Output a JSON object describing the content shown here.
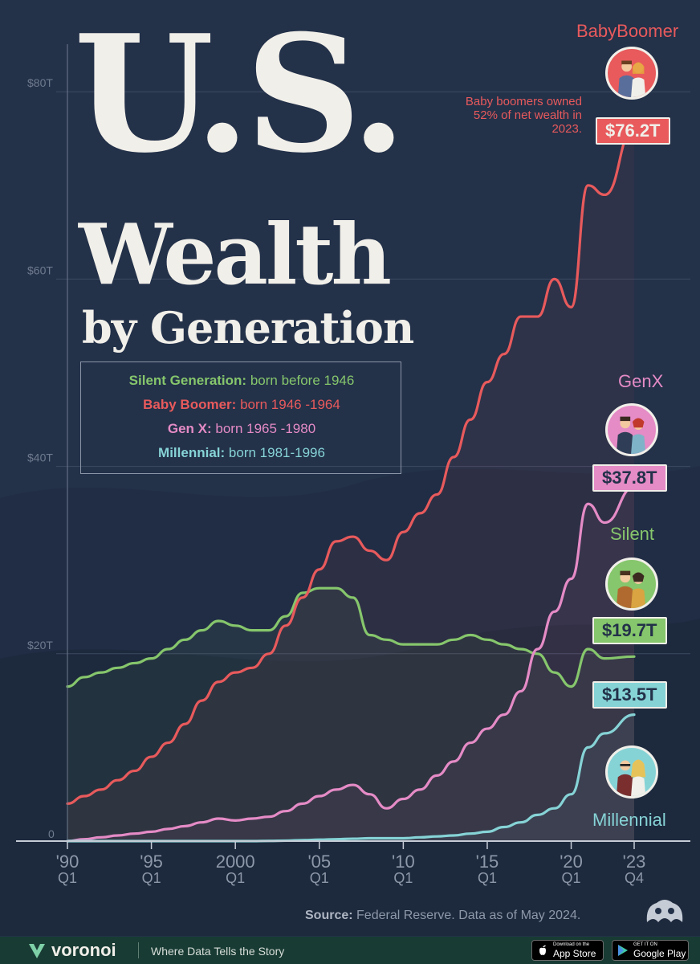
{
  "title": {
    "line1": "U.S.",
    "line2": "Wealth",
    "line3": "by Generation"
  },
  "legend": [
    {
      "name": "Silent Generation:",
      "desc": "born before 1946",
      "color": "#86c66c"
    },
    {
      "name": "Baby Boomer:",
      "desc": "born 1946 -1964",
      "color": "#e85a5c"
    },
    {
      "name": "Gen X:",
      "desc": "born 1965 -1980",
      "color": "#e58bc6"
    },
    {
      "name": "Millennial:",
      "desc": "born 1981-1996",
      "color": "#86d3d6"
    }
  ],
  "generations": {
    "boomer": {
      "label": "BabyBoomer",
      "value": "$76.2T",
      "color": "#e85a5c",
      "note": "Baby boomers owned 52% of net wealth in 2023."
    },
    "genx": {
      "label": "GenX",
      "value": "$37.8T",
      "color": "#e58bc6"
    },
    "silent": {
      "label": "Silent",
      "value": "$19.7T",
      "color": "#86c66c"
    },
    "millennial": {
      "label": "Millennial",
      "value": "$13.5T",
      "color": "#86d3d6"
    }
  },
  "source": {
    "label": "Source:",
    "text": "Federal Reserve. Data as of May 2024."
  },
  "footer": {
    "brand": "voronoi",
    "tagline": "Where Data Tells the Story",
    "app_store_small": "Download on the",
    "app_store_big": "App Store",
    "play_small": "GET IT ON",
    "play_big": "Google Play"
  },
  "chart_data": {
    "type": "line",
    "x": [
      1990,
      1991,
      1992,
      1993,
      1994,
      1995,
      1996,
      1997,
      1998,
      1999,
      2000,
      2001,
      2002,
      2003,
      2004,
      2005,
      2006,
      2007,
      2008,
      2009,
      2010,
      2011,
      2012,
      2013,
      2014,
      2015,
      2016,
      2017,
      2018,
      2019,
      2020,
      2021,
      2022,
      2023.75
    ],
    "x_tick_values": [
      1990,
      1995,
      2000,
      2005,
      2010,
      2015,
      2020,
      2023.75
    ],
    "x_tick_labels": [
      [
        "'90",
        "Q1"
      ],
      [
        "'95",
        "Q1"
      ],
      [
        "2000",
        "Q1"
      ],
      [
        "'05",
        "Q1"
      ],
      [
        "'10",
        "Q1"
      ],
      [
        "'15",
        "Q1"
      ],
      [
        "'20",
        "Q1"
      ],
      [
        "'23",
        "Q4"
      ]
    ],
    "y_ticks": [
      0,
      20,
      40,
      60,
      80
    ],
    "y_tick_labels": [
      "0",
      "$20T",
      "$40T",
      "$60T",
      "$80T"
    ],
    "ylim": [
      0,
      84
    ],
    "grid": true,
    "series": [
      {
        "name": "Silent",
        "color": "#86c66c",
        "values": [
          16.5,
          17.5,
          18,
          18.5,
          19,
          19.5,
          20.5,
          21.5,
          22.5,
          23.5,
          23,
          22.5,
          22.5,
          24,
          26.5,
          27,
          27,
          26,
          22,
          21.5,
          21,
          21,
          21,
          21.5,
          22,
          21.5,
          21,
          20.5,
          20,
          18,
          16.5,
          20.5,
          19.5,
          19.7
        ]
      },
      {
        "name": "Baby Boomer",
        "color": "#e85a5c",
        "values": [
          4,
          4.8,
          5.5,
          6.5,
          7.5,
          9,
          10.5,
          12.5,
          15,
          17,
          18,
          18.5,
          20,
          23,
          26,
          29,
          32,
          32.5,
          31,
          30,
          33,
          35,
          37,
          41,
          45,
          49,
          52,
          56,
          56,
          60,
          57,
          70,
          69,
          76.2
        ]
      },
      {
        "name": "Gen X",
        "color": "#e58bc6",
        "values": [
          0,
          0.2,
          0.4,
          0.6,
          0.8,
          1,
          1.3,
          1.6,
          2,
          2.4,
          2.2,
          2.4,
          2.6,
          3.2,
          4,
          4.8,
          5.5,
          6,
          5,
          3.5,
          4.5,
          5.5,
          7,
          8.5,
          10.5,
          12,
          13.5,
          16,
          20.5,
          24.5,
          28,
          36,
          34,
          37.8
        ]
      },
      {
        "name": "Millennial",
        "color": "#86d3d6",
        "values": [
          0,
          0,
          0,
          0,
          0,
          0,
          0,
          0,
          0,
          0,
          0,
          0,
          0.02,
          0.05,
          0.1,
          0.15,
          0.2,
          0.25,
          0.3,
          0.3,
          0.3,
          0.4,
          0.5,
          0.6,
          0.8,
          1,
          1.5,
          2,
          2.8,
          3.5,
          5,
          10,
          11.5,
          13.5
        ]
      }
    ]
  }
}
